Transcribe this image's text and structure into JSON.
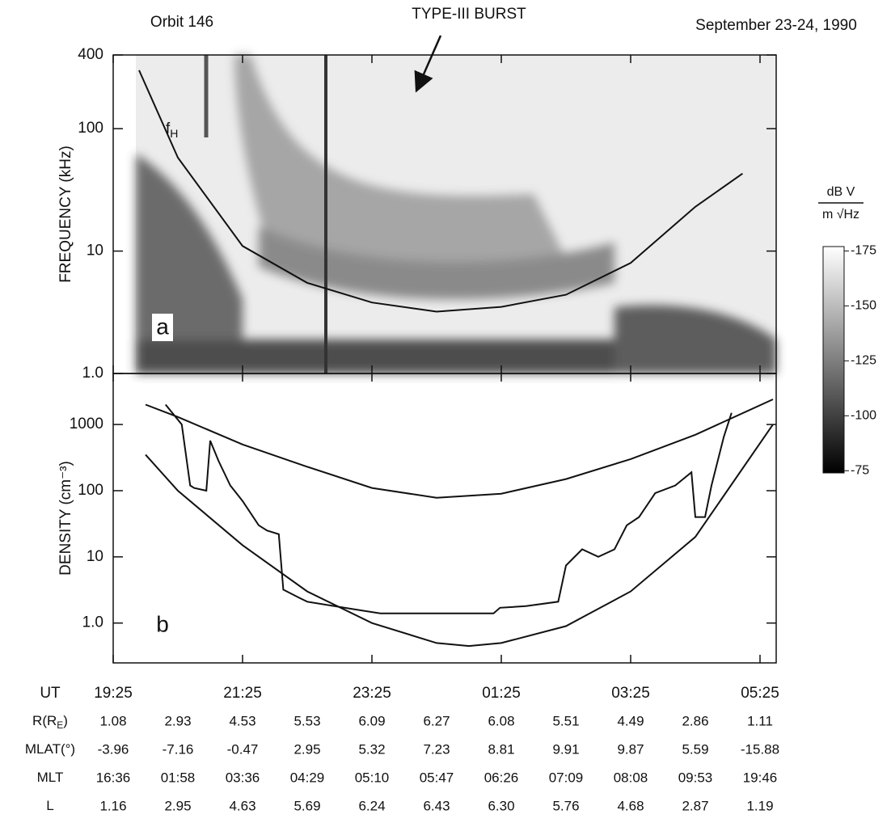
{
  "header": {
    "left": "Orbit 146",
    "center": "TYPE-III BURST",
    "right": "September 23-24, 1990"
  },
  "chart_data": [
    {
      "type": "line",
      "panel_label": "a",
      "ylabel": "FREQUENCY (kHz)",
      "log_scale": true,
      "xlim": [
        0,
        10.25
      ],
      "ylim": [
        1,
        400
      ],
      "yticks": [
        {
          "value": 1,
          "label": "1.0"
        },
        10,
        100,
        400
      ],
      "annotation": {
        "text": "f",
        "sub": "H"
      },
      "series": [
        {
          "color": "#111111",
          "x": [
            0.4,
            1,
            2,
            3,
            4,
            5,
            6,
            7,
            8,
            9,
            9.73
          ],
          "values": [
            300,
            58,
            11,
            5.5,
            3.8,
            3.2,
            3.5,
            4.4,
            8,
            23,
            43
          ]
        }
      ]
    },
    {
      "type": "line",
      "panel_label": "b",
      "ylabel": "DENSITY (cm⁻³)",
      "log_scale": true,
      "xlim": [
        0,
        10.25
      ],
      "ylim": [
        0.25,
        5900
      ],
      "yticks": [
        {
          "value": 1,
          "label": "1.0"
        },
        10,
        100,
        1000
      ],
      "xticks": [
        {
          "value": 0,
          "label": "19:25"
        },
        {
          "value": 2,
          "label": "21:25"
        },
        {
          "value": 4,
          "label": "23:25"
        },
        {
          "value": 6,
          "label": "01:25"
        },
        {
          "value": 8,
          "label": "03:25"
        },
        {
          "value": 10,
          "label": "05:25"
        }
      ],
      "series": [
        {
          "color": "#111111",
          "x": [
            0.5,
            1,
            2,
            3,
            4,
            5,
            6,
            7,
            8,
            9,
            10.2
          ],
          "values": [
            2000,
            1300,
            500,
            230,
            110,
            78,
            90,
            150,
            300,
            700,
            2400
          ]
        },
        {
          "color": "#111111",
          "x": [
            0.5,
            1,
            2,
            3,
            4,
            5,
            5.5,
            6,
            7,
            8,
            9,
            10.2
          ],
          "values": [
            350,
            100,
            15,
            3,
            1,
            0.5,
            0.45,
            0.5,
            0.9,
            3,
            20,
            1000
          ]
        },
        {
          "color": "#111111",
          "x": [
            0.81,
            1.06,
            1.19,
            1.25,
            1.44,
            1.5,
            1.63,
            1.81,
            2.0,
            2.25,
            2.38,
            2.56,
            2.63,
            2.88,
            3.0,
            3.75,
            4.13,
            5.88,
            5.98,
            6.38,
            6.88,
            7.0,
            7.25,
            7.5,
            7.75,
            7.94,
            8.13,
            8.38,
            8.69,
            8.94,
            9.0,
            9.15,
            9.25,
            9.44,
            9.56
          ],
          "values": [
            2000,
            1000,
            120,
            110,
            100,
            570,
            280,
            120,
            70,
            30,
            25,
            22,
            3.2,
            2.4,
            2.1,
            1.6,
            1.4,
            1.4,
            1.7,
            1.8,
            2.1,
            7.4,
            13,
            10,
            13,
            30,
            40,
            92,
            120,
            190,
            40,
            40,
            120,
            650,
            1500
          ]
        }
      ]
    }
  ],
  "colorbar": {
    "unit_top": "dB V",
    "unit_bottom": "m √Hz",
    "clim": [
      -177,
      -74
    ],
    "cticks": [
      -175,
      -150,
      -125,
      -100,
      -75
    ]
  },
  "ephemeris": {
    "header": "UT",
    "rows": [
      {
        "label": "R(R",
        "label_sub": "E",
        "label_end": ")",
        "values": [
          "1.08",
          "2.93",
          "4.53",
          "5.53",
          "6.09",
          "6.27",
          "6.08",
          "5.51",
          "4.49",
          "2.86",
          "1.11"
        ]
      },
      {
        "label": "MLAT(°)",
        "values": [
          "-3.96",
          "-7.16",
          "-0.47",
          "2.95",
          "5.32",
          "7.23",
          "8.81",
          "9.91",
          "9.87",
          "5.59",
          "-15.88"
        ]
      },
      {
        "label": "MLT",
        "values": [
          "16:36",
          "01:58",
          "03:36",
          "04:29",
          "05:10",
          "05:47",
          "06:26",
          "07:09",
          "08:08",
          "09:53",
          "19:46"
        ]
      },
      {
        "label": "L",
        "values": [
          "1.16",
          "2.95",
          "4.63",
          "5.69",
          "6.24",
          "6.43",
          "6.30",
          "5.76",
          "4.68",
          "2.87",
          "1.19"
        ]
      }
    ]
  }
}
